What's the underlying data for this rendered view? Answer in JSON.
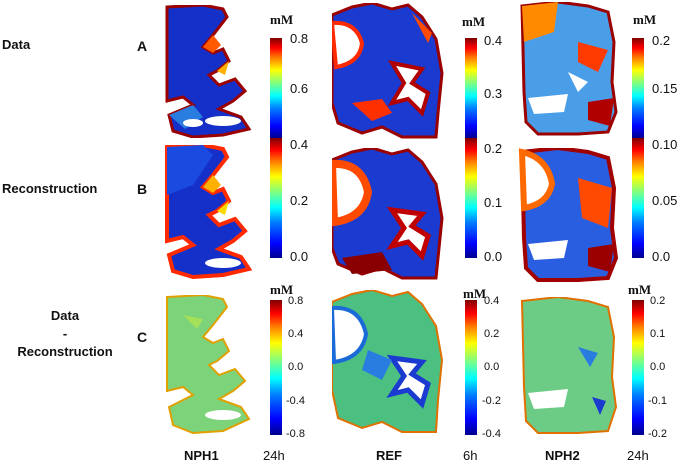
{
  "rows": [
    {
      "label": "Data",
      "letter": "A"
    },
    {
      "label": "Reconstruction",
      "letter": "B"
    },
    {
      "label": "Data\n-\nReconstruction",
      "letter": "C"
    }
  ],
  "columns": [
    {
      "name": "NPH1",
      "time": "24h"
    },
    {
      "name": "REF",
      "time": "6h"
    },
    {
      "name": "NPH2",
      "time": "24h"
    }
  ],
  "unit": "mM",
  "colorbars": {
    "nph1_ab": [
      "0.8",
      "0.6",
      "0.4",
      "0.2",
      "0.0"
    ],
    "ref_ab": [
      "0.4",
      "0.3",
      "0.2",
      "0.1",
      "0.0"
    ],
    "nph2_ab": [
      "0.2",
      "0.15",
      "0.10",
      "0.05",
      "0.0"
    ],
    "nph1_c": [
      "0.8",
      "0.4",
      "0.0",
      "-0.4",
      "-0.8"
    ],
    "ref_c": [
      "0.4",
      "0.2",
      "0.0",
      "-0.2",
      "-0.4"
    ],
    "nph2_c": [
      "0.2",
      "0.1",
      "0.0",
      "-0.1",
      "-0.2"
    ]
  }
}
